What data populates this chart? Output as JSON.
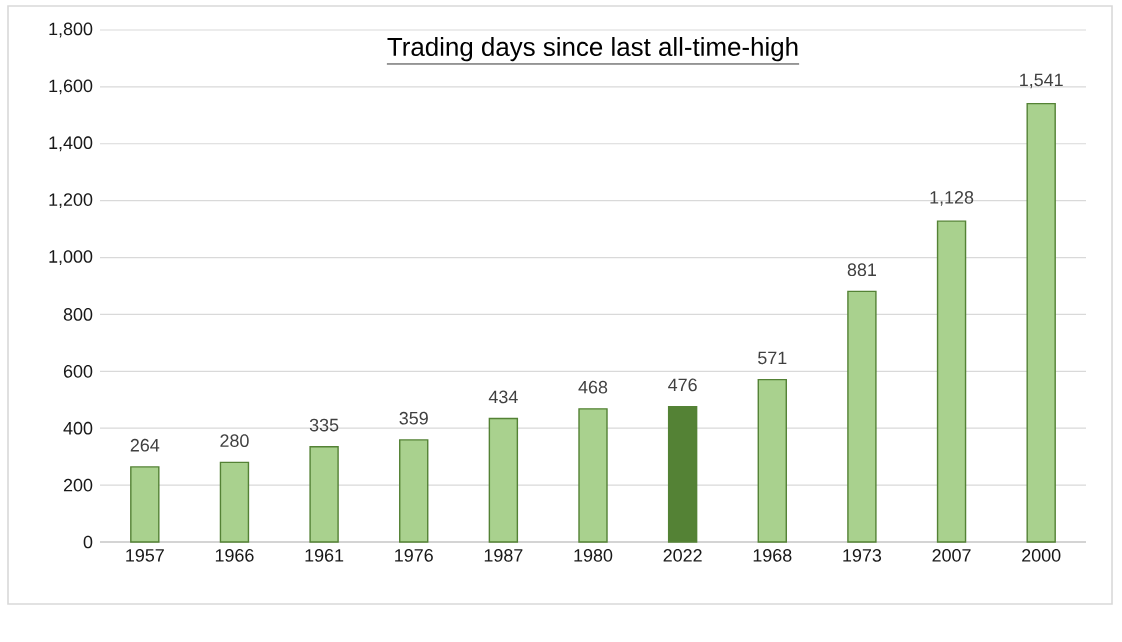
{
  "chart_data": {
    "type": "bar",
    "title": "Trading days since last all-time-high",
    "categories": [
      "1957",
      "1966",
      "1961",
      "1976",
      "1987",
      "1980",
      "2022",
      "1968",
      "1973",
      "2007",
      "2000"
    ],
    "values": [
      264,
      280,
      335,
      359,
      434,
      468,
      476,
      571,
      881,
      1128,
      1541
    ],
    "colors": [
      "#a9d18e",
      "#a9d18e",
      "#a9d18e",
      "#a9d18e",
      "#a9d18e",
      "#a9d18e",
      "#548235",
      "#a9d18e",
      "#a9d18e",
      "#a9d18e",
      "#a9d18e"
    ],
    "value_labels": [
      "264",
      "280",
      "335",
      "359",
      "434",
      "468",
      "476",
      "571",
      "881",
      "1,128",
      "1,541"
    ],
    "ylim": [
      0,
      1800
    ],
    "yticks": [
      0,
      200,
      400,
      600,
      800,
      {
        "value": 1000,
        "label": "1,000"
      },
      {
        "value": 1200,
        "label": "1,200"
      },
      {
        "value": 1400,
        "label": "1,400"
      },
      {
        "value": 1600,
        "label": "1,600"
      },
      {
        "value": 1800,
        "label": "1,800"
      }
    ],
    "grid": "y"
  }
}
